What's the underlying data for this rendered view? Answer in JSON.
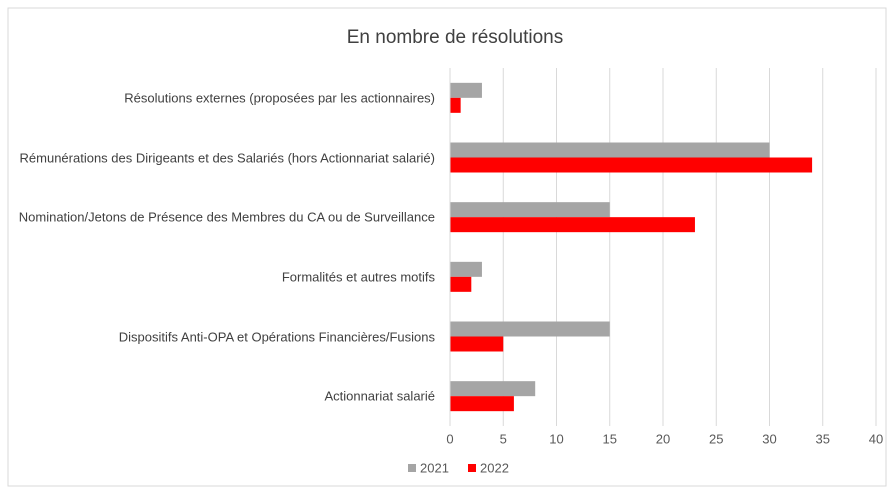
{
  "chart_data": {
    "type": "bar",
    "orientation": "horizontal",
    "title": "En nombre de résolutions",
    "categories": [
      "Résolutions externes (proposées par les actionnaires)",
      "Rémunérations des Dirigeants et des Salariés (hors Actionnariat salarié)",
      "Nomination/Jetons de Présence des Membres du CA ou de Surveillance",
      "Formalités et autres motifs",
      "Dispositifs Anti-OPA et Opérations Financières/Fusions",
      "Actionnariat salarié"
    ],
    "series": [
      {
        "name": "2021",
        "color": "#a5a5a5",
        "values": [
          3,
          30,
          15,
          3,
          15,
          8
        ]
      },
      {
        "name": "2022",
        "color": "#ff0000",
        "values": [
          1,
          34,
          23,
          2,
          5,
          6
        ]
      }
    ],
    "xlim": [
      0,
      40
    ],
    "xticks": [
      0,
      5,
      10,
      15,
      20,
      25,
      30,
      35,
      40
    ],
    "grid": true,
    "legend": "bottom"
  }
}
